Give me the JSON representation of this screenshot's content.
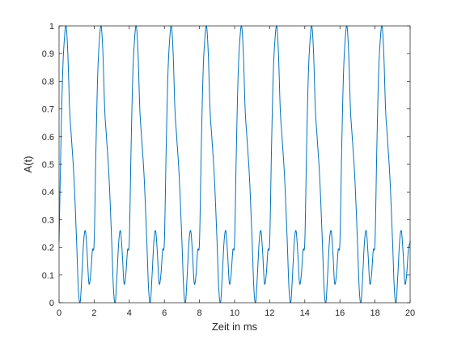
{
  "chart_data": {
    "type": "line",
    "title": "",
    "xlabel": "Zeit in ms",
    "ylabel": "A(t)",
    "xlim": [
      0,
      20
    ],
    "ylim": [
      0,
      1
    ],
    "grid": false,
    "box": true,
    "line_color": "#0072BD",
    "x_ticks": [
      0,
      2,
      4,
      6,
      8,
      10,
      12,
      14,
      16,
      18,
      20
    ],
    "x_tick_labels": [
      "0",
      "2",
      "4",
      "6",
      "8",
      "10",
      "12",
      "14",
      "16",
      "18",
      "20"
    ],
    "y_ticks": [
      0,
      0.1,
      0.2,
      0.3,
      0.4,
      0.5,
      0.6,
      0.7,
      0.8,
      0.9,
      1
    ],
    "y_tick_labels": [
      "0",
      "0.1",
      "0.2",
      "0.3",
      "0.4",
      "0.5",
      "0.6",
      "0.7",
      "0.8",
      "0.9",
      "1"
    ],
    "series": [
      {
        "period": 2,
        "points": [
          [
            0,
            0.22
          ],
          [
            0.1,
            0.55
          ],
          [
            0.2,
            0.82
          ],
          [
            0.3,
            0.95
          ],
          [
            0.4,
            1.0
          ],
          [
            0.5,
            0.9
          ],
          [
            0.6,
            0.7
          ],
          [
            0.7,
            0.6
          ],
          [
            0.85,
            0.45
          ],
          [
            1.0,
            0.22
          ],
          [
            1.1,
            0.05
          ],
          [
            1.2,
            0.0
          ],
          [
            1.3,
            0.1
          ],
          [
            1.4,
            0.22
          ],
          [
            1.5,
            0.26
          ],
          [
            1.6,
            0.18
          ],
          [
            1.7,
            0.07
          ],
          [
            1.8,
            0.1
          ],
          [
            1.9,
            0.19
          ],
          [
            2.0,
            0.22
          ]
        ]
      }
    ]
  }
}
